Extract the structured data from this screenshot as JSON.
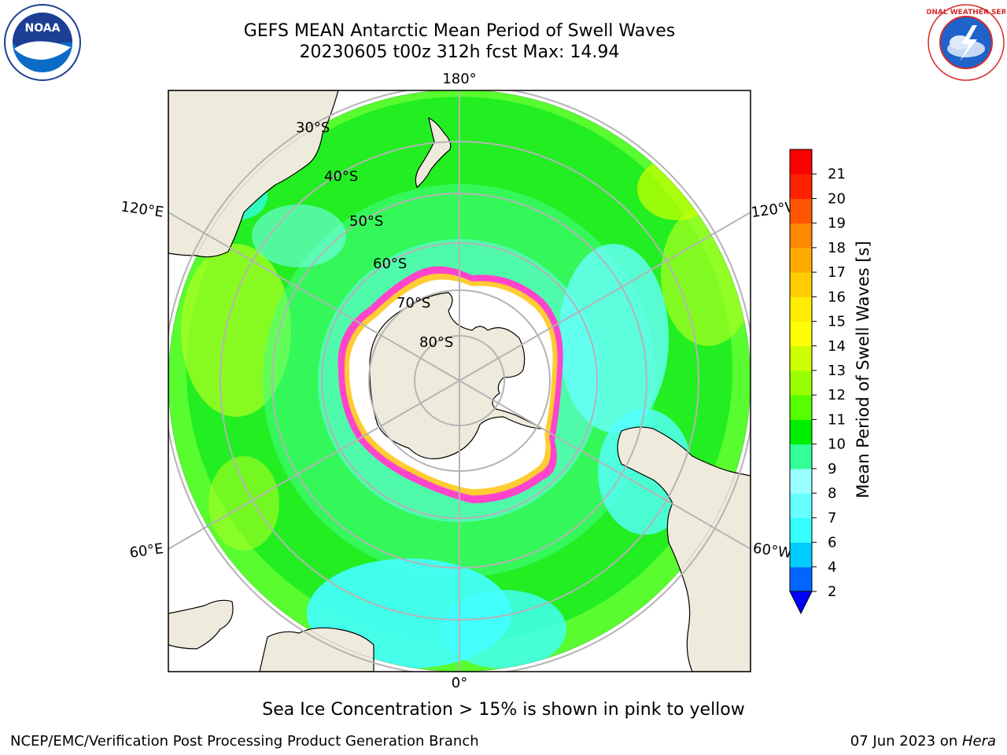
{
  "header": {
    "title_line1": "GEFS MEAN Antarctic Mean Period of Swell Waves",
    "title_line2": "20230605 t00z 312h fcst   Max: 14.94"
  },
  "logos": {
    "noaa": {
      "text": "NOAA",
      "icon": "noaa-logo"
    },
    "nws": {
      "text": "NATIONAL WEATHER SERVICE",
      "icon": "nws-logo"
    }
  },
  "map": {
    "projection": "south-polar-stereographic",
    "longitude_labels": {
      "top": "180°",
      "bottom": "0°",
      "upper_left": "120°E",
      "upper_right": "120°W",
      "lower_left": "60°E",
      "lower_right": "60°W"
    },
    "latitude_labels": [
      "30°S",
      "40°S",
      "50°S",
      "60°S",
      "70°S",
      "80°S"
    ],
    "colors": {
      "land": "#efebdc",
      "sea_ice_ocean": "#ffffff",
      "ice_edge_pink": "#ff33cc",
      "ice_edge_yellow": "#ffcc33",
      "grid": "#b4b4b4"
    }
  },
  "colorbar": {
    "title": "Mean Period of Swell Waves [s]",
    "ticks": [
      "2",
      "4",
      "6",
      "7",
      "8",
      "9",
      "10",
      "11",
      "12",
      "13",
      "14",
      "15",
      "16",
      "17",
      "18",
      "19",
      "20",
      "21"
    ],
    "tick_labels_visible": [
      "21",
      "20",
      "19",
      "18",
      "17",
      "16",
      "15",
      "14",
      "13",
      "12",
      "11",
      "10",
      "9",
      "8",
      "7",
      "6",
      "4",
      "2"
    ],
    "colors_bottom_to_top": [
      "#0066ff",
      "#00ccff",
      "#33ffff",
      "#66ffff",
      "#99ffff",
      "#33ff99",
      "#00ee00",
      "#55ff00",
      "#99ff00",
      "#ccff00",
      "#ffff00",
      "#ffee00",
      "#ffcc00",
      "#ffaa00",
      "#ff8800",
      "#ff5500",
      "#ff2200",
      "#ff0000"
    ],
    "extend_color": "#0000ff"
  },
  "caption": "Sea Ice Concentration > 15% is shown in pink to yellow",
  "footer": {
    "left": "NCEP/EMC/Verification Post Processing Product Generation Branch",
    "right_date": "07 Jun 2023 on ",
    "right_host": "Hera"
  }
}
